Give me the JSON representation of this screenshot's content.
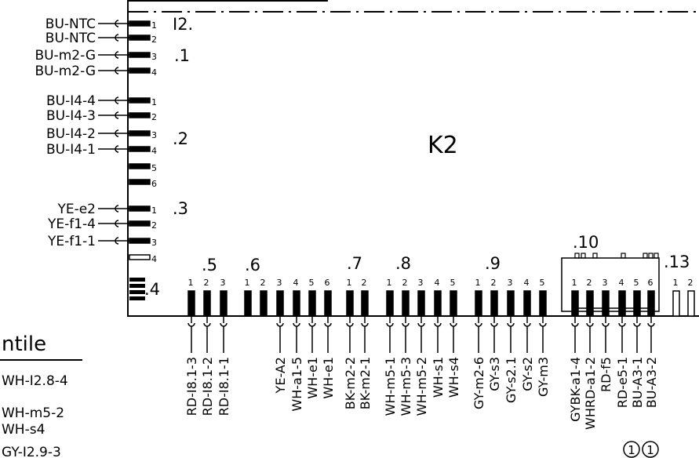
{
  "component_label": "K2",
  "top_mark": "I2.",
  "left_groups": [
    {
      "number": ".1",
      "rows": [
        {
          "wire": "BU-NTC",
          "pin": "1"
        },
        {
          "wire": "BU-NTC",
          "pin": "2"
        },
        {
          "wire": "BU-m2-G",
          "pin": "3"
        },
        {
          "wire": "BU-m2-G",
          "pin": "4"
        }
      ]
    },
    {
      "number": ".2",
      "rows": [
        {
          "wire": "BU-I4-4",
          "pin": "1"
        },
        {
          "wire": "BU-I4-3",
          "pin": "2"
        },
        {
          "wire": "BU-I4-2",
          "pin": "3"
        },
        {
          "wire": "BU-I4-1",
          "pin": "4"
        },
        {
          "wire": "",
          "pin": "5"
        },
        {
          "wire": "",
          "pin": "6"
        }
      ]
    },
    {
      "number": ".3",
      "rows": [
        {
          "wire": "YE-e2",
          "pin": "1"
        },
        {
          "wire": "YE-f1-4",
          "pin": "2"
        },
        {
          "wire": "YE-f1-1",
          "pin": "3"
        },
        {
          "wire": "",
          "pin": "4"
        }
      ]
    },
    {
      "number": ".4",
      "rows": []
    }
  ],
  "bottom_groups": [
    {
      "number": ".5",
      "pins": [
        {
          "pin": "1",
          "wire": "RD-I8.1-3"
        },
        {
          "pin": "2",
          "wire": "RD-I8.1-2"
        },
        {
          "pin": "3",
          "wire": "RD-I8.1-1"
        }
      ]
    },
    {
      "number": ".6",
      "pins": [
        {
          "pin": "1",
          "wire": ""
        },
        {
          "pin": "2",
          "wire": ""
        },
        {
          "pin": "3",
          "wire": "YE-A2"
        },
        {
          "pin": "4",
          "wire": "WH-a1-5"
        },
        {
          "pin": "5",
          "wire": "WH-e1"
        },
        {
          "pin": "6",
          "wire": "WH-e1"
        }
      ]
    },
    {
      "number": ".7",
      "pins": [
        {
          "pin": "1",
          "wire": "BK-m2-2"
        },
        {
          "pin": "2",
          "wire": "BK-m2-1"
        }
      ]
    },
    {
      "number": ".8",
      "pins": [
        {
          "pin": "1",
          "wire": "WH-m5-1"
        },
        {
          "pin": "2",
          "wire": "WH-m5-3"
        },
        {
          "pin": "3",
          "wire": "WH-m5-2"
        },
        {
          "pin": "4",
          "wire": "WH-s1"
        },
        {
          "pin": "5",
          "wire": "WH-s4"
        }
      ]
    },
    {
      "number": ".9",
      "pins": [
        {
          "pin": "1",
          "wire": "GY-m2-6"
        },
        {
          "pin": "2",
          "wire": "GY-s3"
        },
        {
          "pin": "3",
          "wire": "GY-s2.1"
        },
        {
          "pin": "4",
          "wire": "GY-s2"
        },
        {
          "pin": "5",
          "wire": "GY-m3"
        }
      ]
    },
    {
      "number": ".10",
      "pins": [
        {
          "pin": "1",
          "wire": "GYBK-a1-4"
        },
        {
          "pin": "2",
          "wire": "WHRD-a1-2"
        },
        {
          "pin": "3",
          "wire": "RD-f5"
        },
        {
          "pin": "4",
          "wire": "RD-e5-1"
        },
        {
          "pin": "5",
          "wire": "BU-A3-1"
        },
        {
          "pin": "6",
          "wire": "BU-A3-2"
        }
      ]
    },
    {
      "number": ".13",
      "pins": [
        {
          "pin": "1",
          "wire": ""
        },
        {
          "pin": "2",
          "wire": ""
        }
      ]
    }
  ],
  "circle_marks": [
    "1",
    "1"
  ],
  "side_panel": {
    "title": "ntile",
    "lines": [
      "WH-I2.8-4",
      "WH-m5-2",
      "WH-s4",
      "GY-I2.9-3"
    ]
  }
}
